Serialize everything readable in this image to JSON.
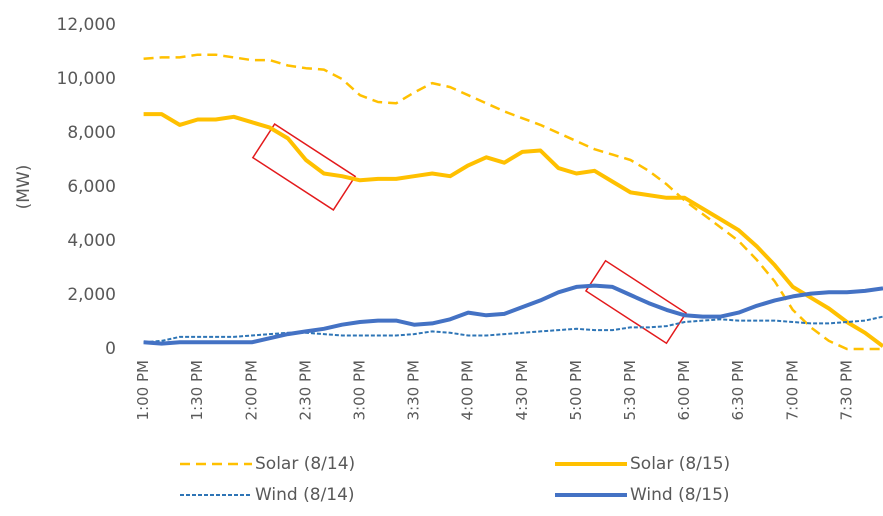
{
  "chart_data": {
    "type": "line",
    "ylabel": "(MW)",
    "x": [
      0,
      10,
      20,
      30,
      40,
      50,
      60,
      70,
      80,
      90,
      100,
      110,
      120,
      130,
      140,
      150,
      160,
      170,
      180,
      190,
      200,
      210,
      220,
      230,
      240,
      250,
      260,
      270,
      280,
      290,
      300,
      310,
      320,
      330,
      340,
      350,
      360,
      370,
      380,
      390,
      400,
      410
    ],
    "xlim": [
      -2,
      410
    ],
    "xticks": [
      {
        "value": 0,
        "label": "1:00 PM"
      },
      {
        "value": 30,
        "label": "1:30 PM"
      },
      {
        "value": 60,
        "label": "2:00 PM"
      },
      {
        "value": 90,
        "label": "2:30 PM"
      },
      {
        "value": 120,
        "label": "3:00 PM"
      },
      {
        "value": 150,
        "label": "3:30 PM"
      },
      {
        "value": 180,
        "label": "4:00 PM"
      },
      {
        "value": 210,
        "label": "4:30 PM"
      },
      {
        "value": 240,
        "label": "5:00 PM"
      },
      {
        "value": 270,
        "label": "5:30 PM"
      },
      {
        "value": 300,
        "label": "6:00 PM"
      },
      {
        "value": 330,
        "label": "6:30 PM"
      },
      {
        "value": 360,
        "label": "7:00 PM"
      },
      {
        "value": 390,
        "label": "7:30 PM"
      }
    ],
    "ylim": [
      0,
      12000
    ],
    "yticks": [
      0,
      {
        "value": 2000,
        "label": "2,000"
      },
      {
        "value": 4000,
        "label": "4,000"
      },
      {
        "value": 6000,
        "label": "6,000"
      },
      {
        "value": 8000,
        "label": "8,000"
      },
      {
        "value": 10000,
        "label": "10,000"
      },
      {
        "value": 12000,
        "label": "12,000"
      }
    ],
    "grid": false,
    "series": [
      {
        "name": "Solar (8/14)",
        "color": "#ffc000",
        "dash": "dashed",
        "values": [
          10750,
          10800,
          10800,
          10900,
          10900,
          10800,
          10700,
          10700,
          10500,
          10400,
          10350,
          10000,
          9400,
          9150,
          9100,
          9500,
          9850,
          9700,
          9400,
          9100,
          8800,
          8550,
          8300,
          8000,
          7700,
          7400,
          7200,
          7000,
          6600,
          6100,
          5500,
          5000,
          4500,
          4000,
          3300,
          2500,
          1450,
          800,
          300,
          0,
          0,
          0
        ]
      },
      {
        "name": "Solar (8/15)",
        "color": "#ffc000",
        "dash": "solid",
        "values": [
          8700,
          8700,
          8300,
          8500,
          8500,
          8600,
          8400,
          8200,
          7800,
          7000,
          6500,
          6400,
          6250,
          6300,
          6300,
          6400,
          6500,
          6400,
          6800,
          7100,
          6900,
          7300,
          7350,
          6700,
          6500,
          6600,
          6200,
          5800,
          5700,
          5600,
          5600,
          5200,
          4800,
          4400,
          3800,
          3100,
          2300,
          1900,
          1500,
          1000,
          600,
          100
        ]
      },
      {
        "name": "Wind (8/14)",
        "color": "#2e75b6",
        "dash": "dotted",
        "values": [
          250,
          300,
          450,
          450,
          450,
          450,
          500,
          550,
          600,
          600,
          550,
          500,
          500,
          500,
          500,
          550,
          650,
          600,
          500,
          500,
          550,
          600,
          650,
          700,
          750,
          700,
          700,
          800,
          800,
          850,
          1000,
          1050,
          1100,
          1050,
          1050,
          1050,
          1000,
          950,
          950,
          1000,
          1050,
          1200
        ]
      },
      {
        "name": "Wind (8/15)",
        "color": "#4472c4",
        "dash": "solid",
        "values": [
          250,
          200,
          250,
          250,
          250,
          250,
          250,
          400,
          550,
          650,
          750,
          900,
          1000,
          1050,
          1050,
          900,
          950,
          1100,
          1350,
          1250,
          1300,
          1550,
          1800,
          2100,
          2300,
          2350,
          2300,
          2000,
          1700,
          1450,
          1250,
          1200,
          1200,
          1350,
          1600,
          1800,
          1950,
          2050,
          2100,
          2100,
          2150,
          2250
        ]
      }
    ]
  }
}
